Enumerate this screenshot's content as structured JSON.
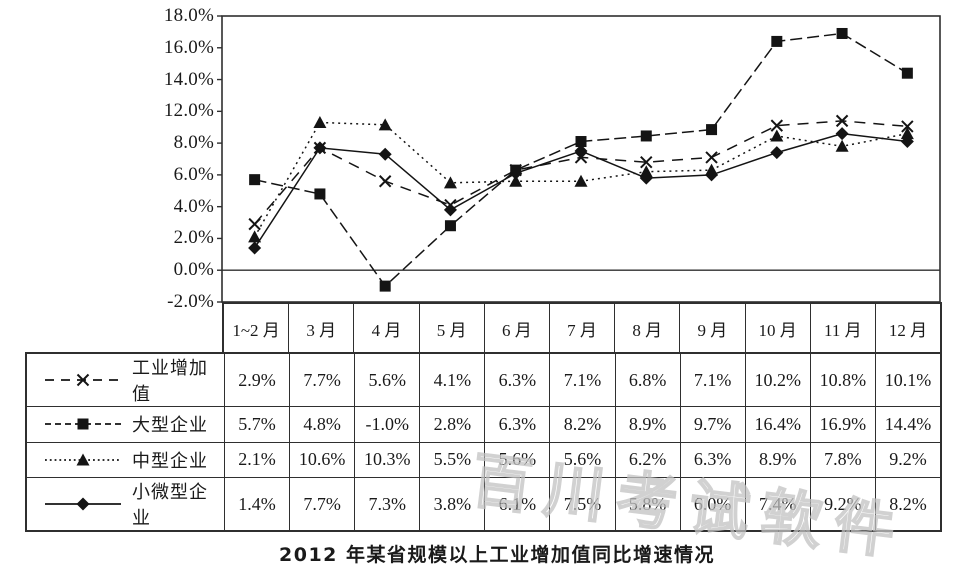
{
  "title": "2012 年某省规模以上工业增加值同比增速情况",
  "watermark": {
    "text": "百川考试软件",
    "color": "#c2c2c2"
  },
  "colors": {
    "ink": "#141414",
    "border": "#2f2f2f",
    "background": "#ffffff"
  },
  "chart_data": {
    "type": "line",
    "title": "2012 年某省规模以上工业增加值同比增速情况",
    "categories": [
      "1~2 月",
      "3 月",
      "4 月",
      "5 月",
      "6 月",
      "7 月",
      "8 月",
      "9 月",
      "10 月",
      "11 月",
      "12 月"
    ],
    "y_tick_labels": [
      "18.0%",
      "16.0%",
      "14.0%",
      "12.0%",
      "8.0%",
      "6.0%",
      "4.0%",
      "2.0%",
      "0.0%",
      "-2.0%"
    ],
    "y_tick_values": [
      18,
      16,
      14,
      12,
      8,
      6,
      4,
      2,
      0,
      -2
    ],
    "ylim": [
      -2,
      18
    ],
    "grid": "zero-line-only",
    "legend_position": "table-first-column",
    "value_format": "percent-1dp",
    "series": [
      {
        "name": "工业增加值",
        "marker": "cross",
        "line_style": "dashed-long",
        "values": [
          2.9,
          7.7,
          5.6,
          4.1,
          6.3,
          7.1,
          6.8,
          7.1,
          10.2,
          10.8,
          10.1
        ]
      },
      {
        "name": "大型企业",
        "marker": "square",
        "line_style": "dashed",
        "values": [
          5.7,
          4.8,
          -1.0,
          2.8,
          6.3,
          8.2,
          8.9,
          9.7,
          16.4,
          16.9,
          14.4
        ]
      },
      {
        "name": "中型企业",
        "marker": "triangle",
        "line_style": "dotted",
        "values": [
          2.1,
          10.6,
          10.3,
          5.5,
          5.6,
          5.6,
          6.2,
          6.3,
          8.9,
          7.8,
          9.2
        ]
      },
      {
        "name": "小微型企业",
        "marker": "diamond",
        "line_style": "solid",
        "values": [
          1.4,
          7.7,
          7.3,
          3.8,
          6.1,
          7.5,
          5.8,
          6.0,
          7.4,
          9.2,
          8.2
        ]
      }
    ]
  }
}
